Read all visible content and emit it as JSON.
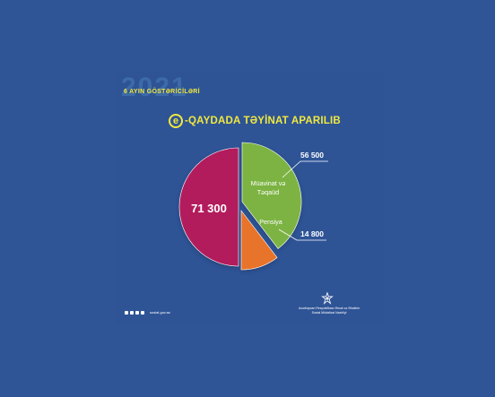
{
  "header": {
    "year": "2021",
    "subtitle": "6 AYIN GÖSTƏRİCİLƏRİ",
    "badge_letter": "e",
    "headline": "-QAYDADA TƏYİNAT APARILIB"
  },
  "chart_data": {
    "type": "pie",
    "slices": [
      {
        "label": "Müavinat və Təqaüd",
        "value": 56500,
        "value_label": "56 500",
        "color": "#7cb342"
      },
      {
        "label": "Pensiya",
        "value": 14800,
        "value_label": "14 800",
        "color": "#e8732a"
      },
      {
        "label": "",
        "value": 71300,
        "value_label": "71 300",
        "color": "#b21e5b"
      }
    ]
  },
  "footer": {
    "social_icons": [
      "instagram-icon",
      "facebook-icon",
      "twitter-icon",
      "youtube-icon"
    ],
    "website": "sosial.gov.az",
    "ministry_name": "Azərbaycan Respublikası Əmək və Əhalinin Sosial Müdafiəsi Nazirliyi"
  }
}
